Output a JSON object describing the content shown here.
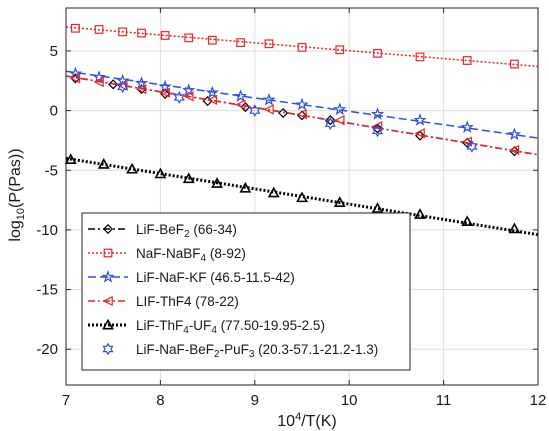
{
  "chart_data": {
    "type": "line",
    "xlabel": "10⁴/T(K)",
    "ylabel": "log₁₀(P(Pas))",
    "xlim": [
      7,
      12
    ],
    "ylim": [
      -23,
      8.6
    ],
    "xticks": [
      7,
      8,
      9,
      10,
      11,
      12
    ],
    "yticks": [
      -20,
      -15,
      -10,
      -5,
      0,
      5
    ],
    "grid": true,
    "legend_position": "bottom-left",
    "series": [
      {
        "name": "LiF-BeF₂ (66-34)",
        "name_parts": [
          "LiF-BeF",
          "2",
          " (66-34)"
        ],
        "color": "#000000",
        "dash": "7,3,2,3",
        "marker": "diamond",
        "x": [
          7.1,
          7.5,
          7.8,
          8.05,
          8.5,
          8.9,
          9.3,
          9.5,
          9.8,
          10.3,
          10.75,
          11.25,
          11.75
        ],
        "y": [
          2.7,
          2.2,
          1.8,
          1.4,
          0.8,
          0.3,
          -0.2,
          -0.4,
          -0.8,
          -1.5,
          -2.1,
          -2.7,
          -3.4
        ],
        "fit": [
          [
            7.0,
            2.9
          ],
          [
            12.0,
            -3.7
          ]
        ]
      },
      {
        "name": "NaF-NaBF₄ (8-92)",
        "name_parts": [
          "NaF-NaBF",
          "4",
          " (8-92)"
        ],
        "color": "#e8262a",
        "dash": "2,2",
        "marker": "square",
        "x": [
          7.1,
          7.35,
          7.6,
          7.8,
          8.05,
          8.3,
          8.55,
          8.85,
          9.15,
          9.5,
          9.9,
          10.3,
          10.75,
          11.25,
          11.75
        ],
        "y": [
          6.9,
          6.8,
          6.6,
          6.5,
          6.3,
          6.1,
          5.9,
          5.7,
          5.6,
          5.3,
          5.1,
          4.8,
          4.5,
          4.2,
          3.9
        ],
        "fit": [
          [
            7.0,
            7.0
          ],
          [
            12.0,
            3.7
          ]
        ]
      },
      {
        "name": "LiF-NaF-KF (46.5-11.5-42)",
        "name_parts": [
          "LiF-NaF-KF (46.5-11.5-42)"
        ],
        "color": "#2e4fd8",
        "dash": "8,4",
        "marker": "star",
        "x": [
          7.1,
          7.35,
          7.6,
          7.8,
          8.05,
          8.3,
          8.55,
          8.85,
          9.15,
          9.5,
          9.9,
          10.3,
          10.75,
          11.25,
          11.75
        ],
        "y": [
          3.1,
          2.8,
          2.5,
          2.3,
          2.0,
          1.7,
          1.5,
          1.2,
          0.9,
          0.5,
          0.1,
          -0.3,
          -0.8,
          -1.4,
          -2.0
        ],
        "fit": [
          [
            7.0,
            3.3
          ],
          [
            12.0,
            -2.3
          ]
        ]
      },
      {
        "name": "LIF-ThF4 (78-22)",
        "name_parts": [
          "LIF-ThF4 (78-22)"
        ],
        "color": "#e8262a",
        "dash": "7,3,2,3",
        "marker": "triangle-left",
        "x": [
          7.1,
          7.35,
          7.6,
          7.8,
          8.05,
          8.3,
          8.55,
          8.85,
          9.15,
          9.5,
          9.9,
          10.3,
          10.75,
          11.25,
          11.75
        ],
        "y": [
          2.7,
          2.4,
          2.1,
          1.8,
          1.5,
          1.2,
          0.9,
          0.5,
          0.1,
          -0.3,
          -0.8,
          -1.3,
          -1.9,
          -2.6,
          -3.3
        ],
        "fit": [
          [
            7.0,
            2.9
          ],
          [
            12.0,
            -3.7
          ]
        ]
      },
      {
        "name": "LiF-ThF₄-UF₄ (77.50-19.95-2.5)",
        "name_parts": [
          "LiF-ThF",
          "4",
          "-UF",
          "4",
          " (77.50-19.95-2.5)"
        ],
        "color": "#000000",
        "dash": "2,2",
        "dash_width": 3,
        "marker": "triangle-up",
        "x": [
          7.05,
          7.4,
          7.7,
          8.0,
          8.3,
          8.6,
          8.9,
          9.2,
          9.5,
          9.9,
          10.3,
          10.75,
          11.25,
          11.75
        ],
        "y": [
          -4.1,
          -4.5,
          -4.9,
          -5.3,
          -5.7,
          -6.1,
          -6.5,
          -6.9,
          -7.3,
          -7.7,
          -8.2,
          -8.7,
          -9.3,
          -9.9
        ],
        "fit": [
          [
            7.0,
            -4.0
          ],
          [
            12.0,
            -10.4
          ]
        ]
      },
      {
        "name": "LiF-NaF-BeF₂-PuF₃ (20.3-57.1-21.2-1.3)",
        "name_parts": [
          "LiF-NaF-BeF",
          "2",
          "-PuF",
          "3",
          " (20.3-57.1-21.2-1.3)"
        ],
        "color": "#2e4fd8",
        "dash": "none",
        "marker": "hexagram",
        "x": [
          7.6,
          8.2,
          9.0,
          9.8,
          10.3,
          11.3
        ],
        "y": [
          2.0,
          1.1,
          0.0,
          -1.1,
          -1.7,
          -3.0
        ],
        "fit": null
      }
    ]
  }
}
